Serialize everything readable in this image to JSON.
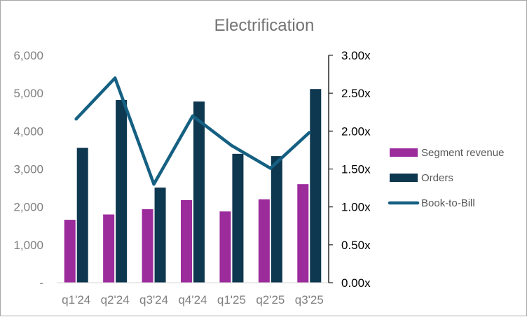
{
  "chart_data": {
    "type": "bar",
    "title": "Electrification",
    "categories": [
      "q1'24",
      "q2'24",
      "q3'24",
      "q4'24",
      "q1'25",
      "q2'25",
      "q3'25"
    ],
    "series": [
      {
        "name": "Segment revenue",
        "type": "bar",
        "axis": "left",
        "color": "#9c2b9c",
        "values": [
          1660,
          1800,
          1940,
          2180,
          1880,
          2200,
          2600
        ]
      },
      {
        "name": "Orders",
        "type": "bar",
        "axis": "left",
        "color": "#0e3750",
        "values": [
          3560,
          4820,
          2510,
          4780,
          3400,
          3340,
          5110
        ]
      },
      {
        "name": "Book-to-Bill",
        "type": "line",
        "axis": "right",
        "color": "#156082",
        "values": [
          2.16,
          2.7,
          1.3,
          2.2,
          1.81,
          1.51,
          1.98
        ]
      }
    ],
    "left_axis": {
      "ylim": [
        0,
        6000
      ],
      "ticks": [
        "-",
        "1,000",
        "2,000",
        "3,000",
        "4,000",
        "5,000",
        "6,000"
      ]
    },
    "right_axis": {
      "ylim": [
        0,
        3
      ],
      "ticks": [
        "0.00x",
        "0.50x",
        "1.00x",
        "1.50x",
        "2.00x",
        "2.50x",
        "3.00x"
      ]
    },
    "grid": false,
    "legend_position": "right"
  }
}
